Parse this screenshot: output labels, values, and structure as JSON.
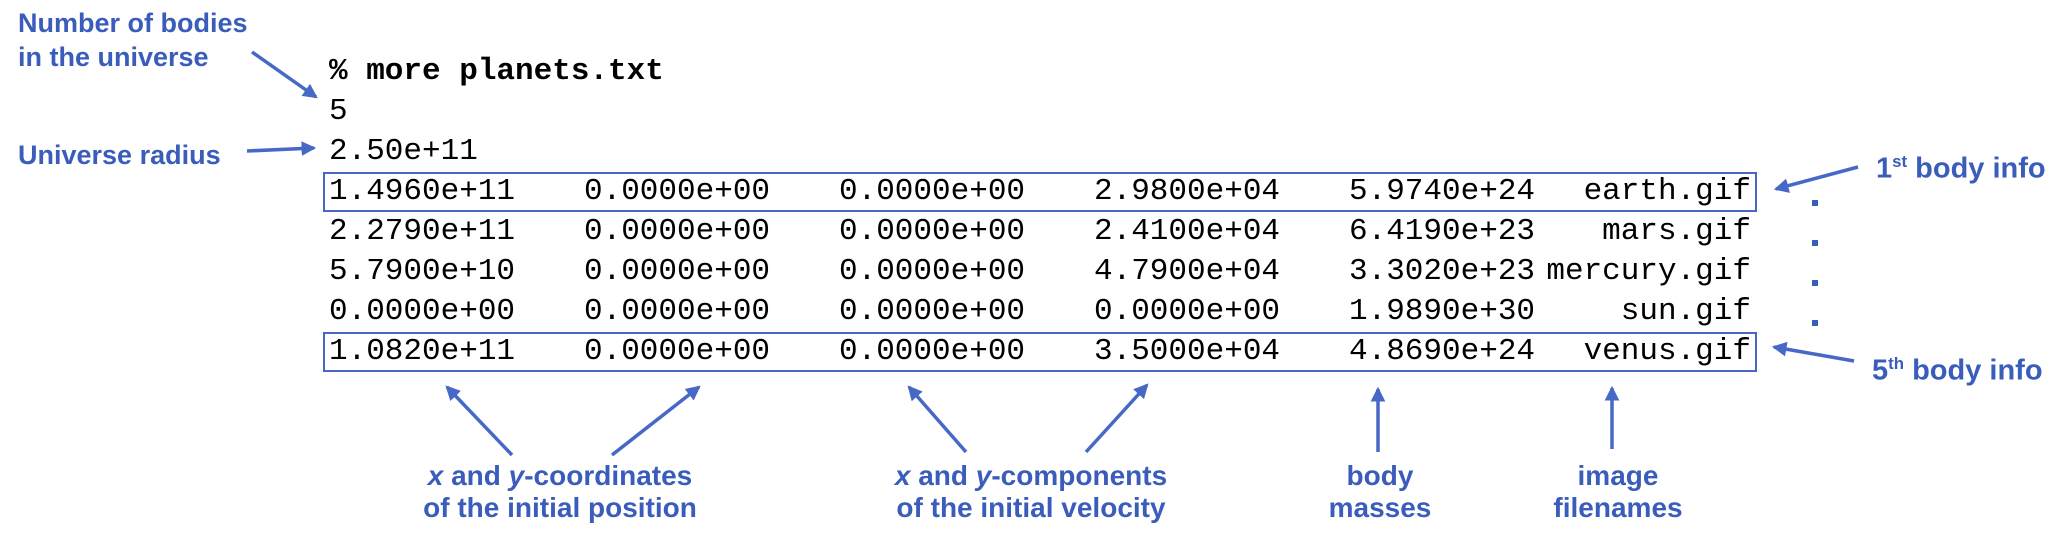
{
  "colors": {
    "accent_text": "#3a5cbb",
    "accent_line": "#4768c6",
    "terminal_text": "#000000",
    "background": "#ffffff"
  },
  "terminal": {
    "command": "% more planets.txt",
    "num_bodies": "5",
    "universe_radius": "2.50e+11",
    "bodies": [
      {
        "x": "1.4960e+11",
        "y": "0.0000e+00",
        "vx": "0.0000e+00",
        "vy": "2.9800e+04",
        "mass": "5.9740e+24",
        "image": "earth.gif",
        "boxed": true
      },
      {
        "x": "2.2790e+11",
        "y": "0.0000e+00",
        "vx": "0.0000e+00",
        "vy": "2.4100e+04",
        "mass": "6.4190e+23",
        "image": "mars.gif",
        "boxed": false
      },
      {
        "x": "5.7900e+10",
        "y": "0.0000e+00",
        "vx": "0.0000e+00",
        "vy": "4.7900e+04",
        "mass": "3.3020e+23",
        "image": "mercury.gif",
        "boxed": false
      },
      {
        "x": "0.0000e+00",
        "y": "0.0000e+00",
        "vx": "0.0000e+00",
        "vy": "0.0000e+00",
        "mass": "1.9890e+30",
        "image": "sun.gif",
        "boxed": false
      },
      {
        "x": "1.0820e+11",
        "y": "0.0000e+00",
        "vx": "0.0000e+00",
        "vy": "3.5000e+04",
        "mass": "4.8690e+24",
        "image": "venus.gif",
        "boxed": true
      }
    ]
  },
  "annotations": {
    "num_bodies_label": {
      "line1": "Number of bodies",
      "line2": "in the universe"
    },
    "radius_label": "Universe radius",
    "first_body": {
      "value": "1",
      "ordinal": "st",
      "label": " body info"
    },
    "fifth_body": {
      "value": "5",
      "ordinal": "th",
      "label": " body info"
    },
    "dots_count": 4,
    "position_label": {
      "line1": [
        {
          "text": "x",
          "italic": true
        },
        {
          "text": " and ",
          "italic": false
        },
        {
          "text": "y",
          "italic": true
        },
        {
          "text": "-coordinates",
          "italic": false
        }
      ],
      "line2": "of the initial position"
    },
    "velocity_label": {
      "line1": [
        {
          "text": "x",
          "italic": true
        },
        {
          "text": " and ",
          "italic": false
        },
        {
          "text": "y",
          "italic": true
        },
        {
          "text": "-components",
          "italic": false
        }
      ],
      "line2": "of the initial velocity"
    },
    "mass_label": {
      "line1": "body",
      "line2": "masses"
    },
    "image_label": {
      "line1": "image",
      "line2": "filenames"
    }
  }
}
